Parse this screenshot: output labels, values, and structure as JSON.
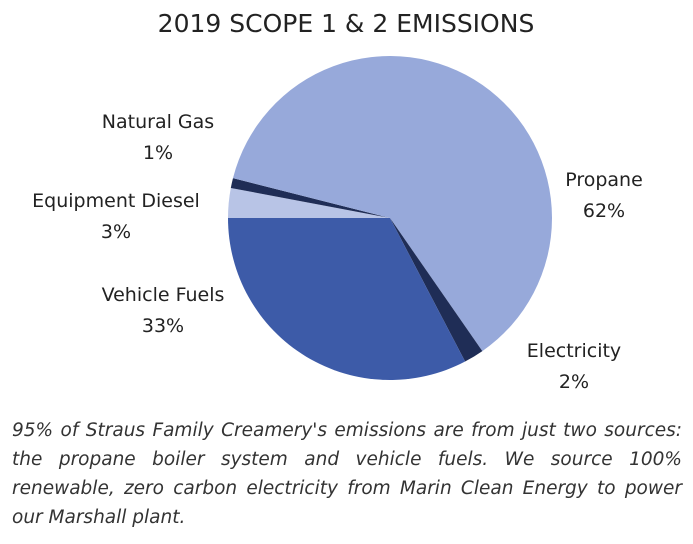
{
  "chart_data": {
    "type": "pie",
    "title": "2019 SCOPE 1 & 2 EMISSIONS",
    "categories": [
      "Equipment Diesel",
      "Natural Gas",
      "Propane",
      "Electricity",
      "Vehicle Fuels"
    ],
    "values": [
      3,
      1,
      62,
      2,
      33
    ],
    "value_labels": [
      "3%",
      "1%",
      "62%",
      "2%",
      "33%"
    ],
    "colors": [
      "#b8c4e6",
      "#1f2d56",
      "#97a9da",
      "#1f2d56",
      "#3d5ba8"
    ]
  },
  "caption": "95% of Straus Family Creamery's emissions are from just two sources: the propane boiler system and vehicle fuels. We source 100% renewable, zero carbon electricity from Marin Clean Energy to power our Marshall plant."
}
